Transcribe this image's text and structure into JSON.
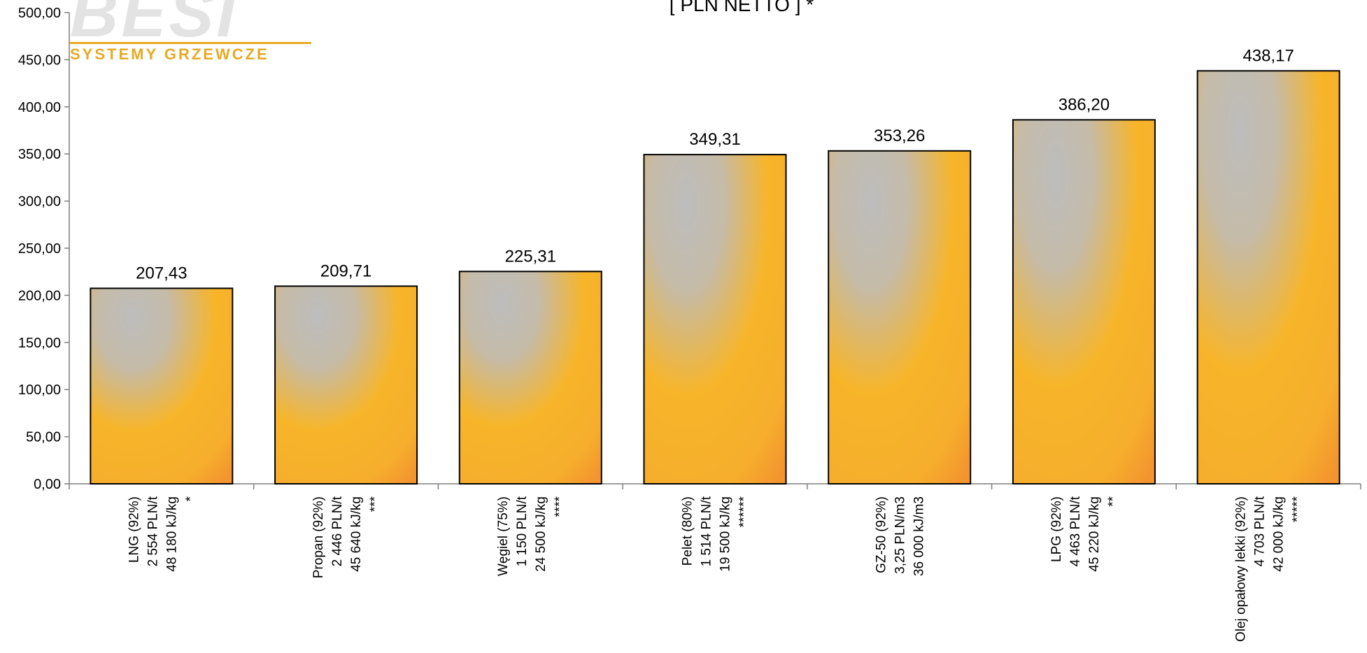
{
  "chart_data": {
    "type": "bar",
    "title": "[ PLN NETTO ] *",
    "logo": {
      "name": "BESI",
      "tagline": "SYSTEMY GRZEWCZE"
    },
    "ylim": [
      0,
      500
    ],
    "yticks": [
      "0,00",
      "50,00",
      "100,00",
      "150,00",
      "200,00",
      "250,00",
      "300,00",
      "350,00",
      "400,00",
      "450,00",
      "500,00"
    ],
    "ytick_values": [
      0,
      50,
      100,
      150,
      200,
      250,
      300,
      350,
      400,
      450,
      500
    ],
    "grid": false,
    "categories": [
      [
        "LNG (92%)",
        "2 554 PLN/t",
        "48 180 kJ/kg",
        "*"
      ],
      [
        "Propan (92%)",
        "2 446 PLN/t",
        "45 640 kJ/kg",
        "***"
      ],
      [
        "Węgiel (75%)",
        "1 150 PLN/t",
        "24 500 kJ/kg",
        "****"
      ],
      [
        "Pelet (80%)",
        "1 514 PLN/t",
        "19 500 kJ/kg",
        "******"
      ],
      [
        "GZ-50 (92%)",
        "3,25 PLN/m3",
        "36 000 kJ/m3"
      ],
      [
        "LPG (92%)",
        "4 463 PLN/t",
        "45 220 kJ/kg",
        "**"
      ],
      [
        "Olej opałowy lekki (92%)",
        "4 703 PLN/t",
        "42 000 kJ/kg",
        "*****"
      ]
    ],
    "values": [
      207.43,
      209.71,
      225.31,
      349.31,
      353.26,
      386.2,
      438.17
    ],
    "value_labels": [
      "207,43",
      "209,71",
      "225,31",
      "349,31",
      "353,26",
      "386,20",
      "438,17"
    ],
    "colors": {
      "bar_top": "#c0c0c0",
      "bar_bottom": "#f7b52a",
      "bar_corner": "#f39a2e",
      "logo_accent": "#e8aa22"
    }
  }
}
